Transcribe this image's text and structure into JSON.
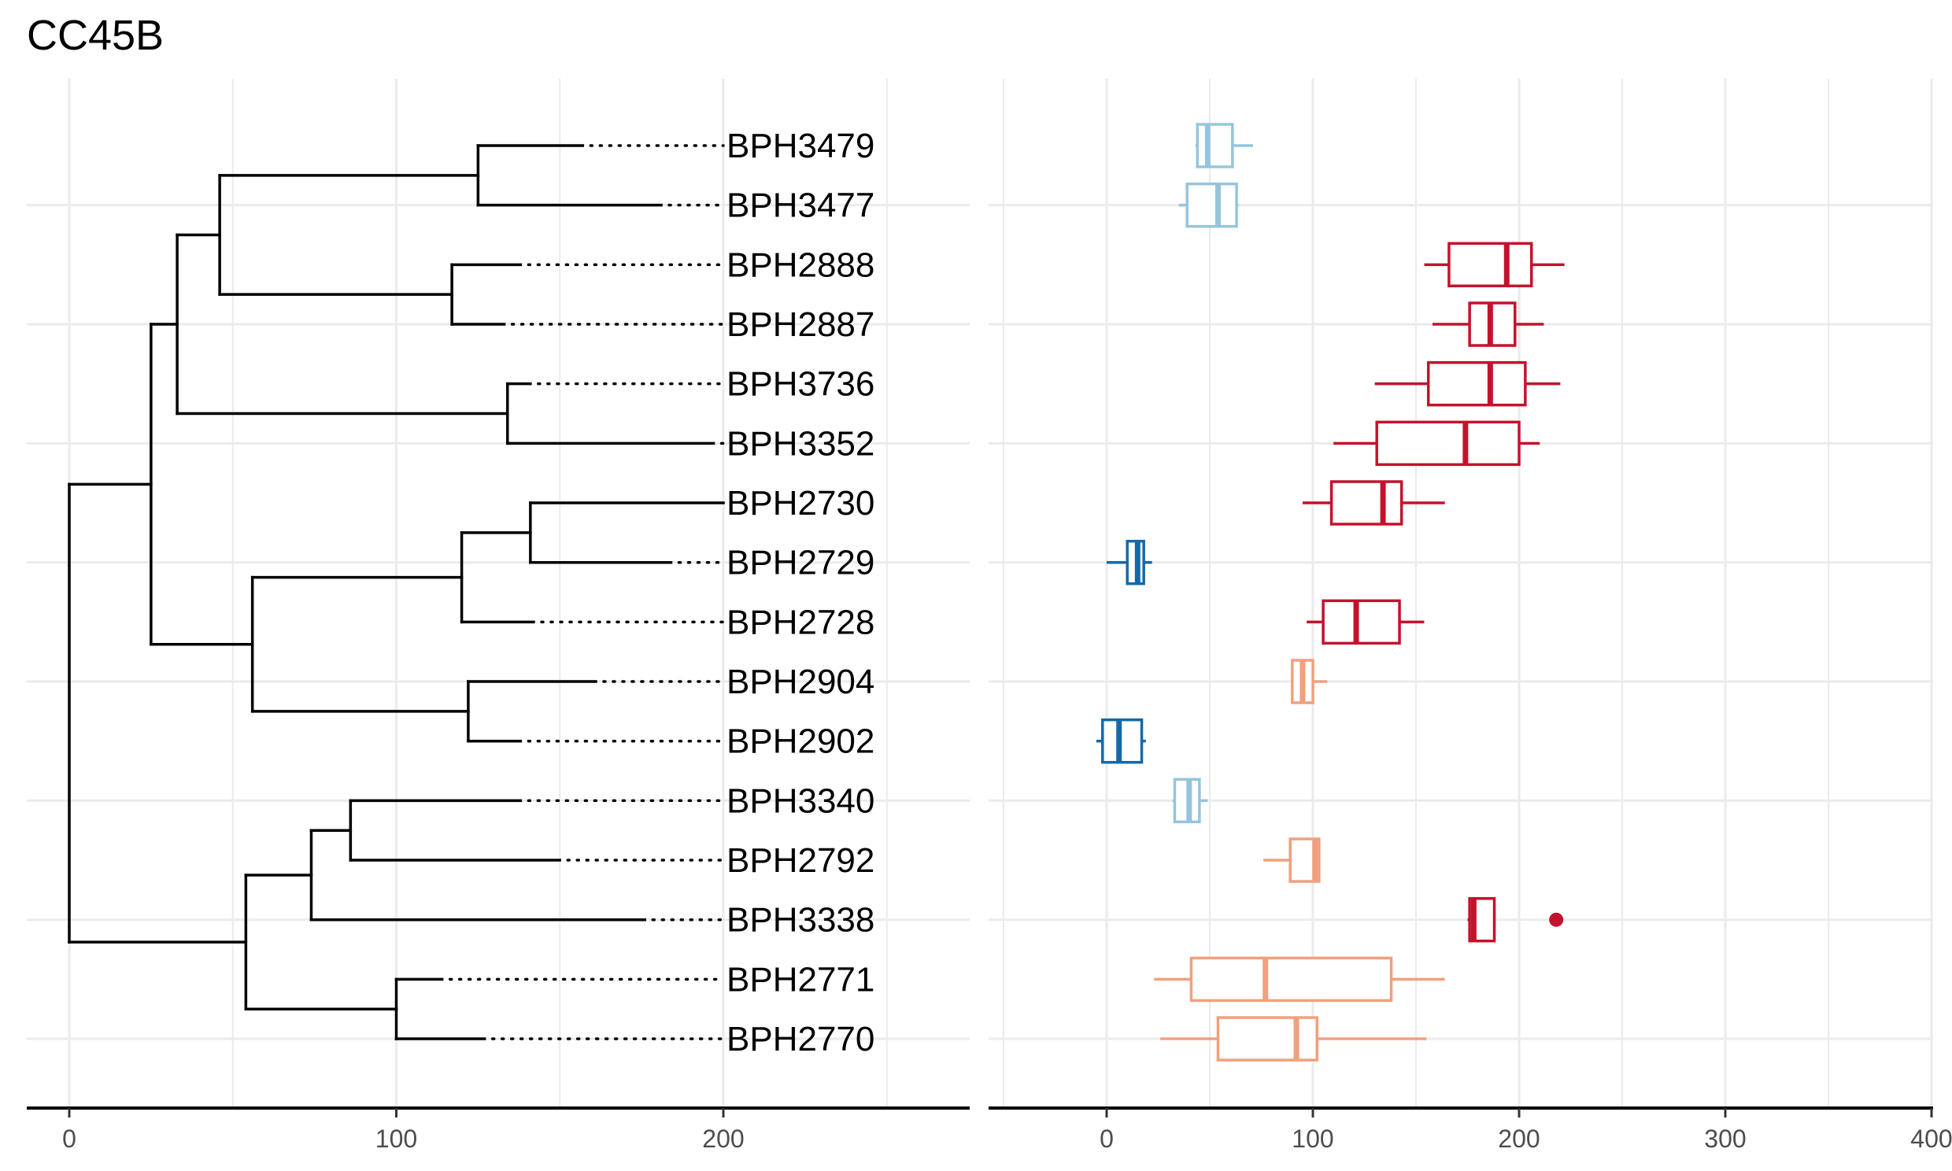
{
  "title": "CC45B",
  "chart_data": [
    {
      "type": "dendrogram",
      "xlim": [
        0,
        265
      ],
      "x_ticks": [
        0,
        100,
        200
      ],
      "grid": true,
      "tips": [
        {
          "label": "BPH3479",
          "branch_end": 157
        },
        {
          "label": "BPH3477",
          "branch_end": 181
        },
        {
          "label": "BPH2888",
          "branch_end": 138
        },
        {
          "label": "BPH2887",
          "branch_end": 133
        },
        {
          "label": "BPH3736",
          "branch_end": 141
        },
        {
          "label": "BPH3352",
          "branch_end": 197
        },
        {
          "label": "BPH2730",
          "branch_end": 200
        },
        {
          "label": "BPH2729",
          "branch_end": 184
        },
        {
          "label": "BPH2728",
          "branch_end": 142
        },
        {
          "label": "BPH2904",
          "branch_end": 161
        },
        {
          "label": "BPH2902",
          "branch_end": 138
        },
        {
          "label": "BPH3340",
          "branch_end": 138
        },
        {
          "label": "BPH2792",
          "branch_end": 150
        },
        {
          "label": "BPH3338",
          "branch_end": 176
        },
        {
          "label": "BPH2771",
          "branch_end": 114
        },
        {
          "label": "BPH2770",
          "branch_end": 127
        }
      ],
      "tree": {
        "h": 0,
        "c": [
          {
            "h": 25,
            "c": [
              {
                "h": 33,
                "c": [
                  {
                    "h": 46,
                    "c": [
                      {
                        "h": 125,
                        "c": [
                          0,
                          1
                        ]
                      },
                      {
                        "h": 117,
                        "c": [
                          2,
                          3
                        ]
                      }
                    ]
                  },
                  {
                    "h": 134,
                    "c": [
                      4,
                      5
                    ]
                  }
                ]
              },
              {
                "h": 56,
                "c": [
                  {
                    "h": 120,
                    "c": [
                      {
                        "h": 141,
                        "c": [
                          6,
                          7
                        ]
                      },
                      8
                    ]
                  },
                  {
                    "h": 122,
                    "c": [
                      9,
                      10
                    ]
                  }
                ]
              }
            ]
          },
          {
            "h": 54,
            "c": [
              {
                "h": 74,
                "c": [
                  {
                    "h": 86,
                    "c": [
                      11,
                      12
                    ]
                  },
                  13
                ]
              },
              {
                "h": 100,
                "c": [
                  14,
                  15
                ]
              }
            ]
          }
        ]
      }
    },
    {
      "type": "boxplot",
      "xlim": [
        -50,
        400
      ],
      "x_ticks": [
        0,
        100,
        200,
        300,
        400
      ],
      "grid": true,
      "colors": {
        "red": "#c4122d",
        "light_red": "#f1a07d",
        "light_blue": "#95c5dd",
        "blue": "#1369a9"
      },
      "boxes": [
        {
          "label": "BPH3479",
          "min": 43,
          "q1": 44,
          "median": 49,
          "q3": 61,
          "max": 71,
          "color": "light_blue"
        },
        {
          "label": "BPH3477",
          "min": 35,
          "q1": 39,
          "median": 54,
          "q3": 63,
          "max": 64,
          "color": "light_blue"
        },
        {
          "label": "BPH2888",
          "min": 154,
          "q1": 166,
          "median": 194,
          "q3": 206,
          "max": 222,
          "color": "red"
        },
        {
          "label": "BPH2887",
          "min": 158,
          "q1": 176,
          "median": 186,
          "q3": 198,
          "max": 212,
          "color": "red"
        },
        {
          "label": "BPH3736",
          "min": 130,
          "q1": 156,
          "median": 186,
          "q3": 203,
          "max": 220,
          "color": "red"
        },
        {
          "label": "BPH3352",
          "min": 110,
          "q1": 131,
          "median": 174,
          "q3": 200,
          "max": 210,
          "color": "red"
        },
        {
          "label": "BPH2730",
          "min": 95,
          "q1": 109,
          "median": 134,
          "q3": 143,
          "max": 164,
          "color": "red"
        },
        {
          "label": "BPH2729",
          "min": 0,
          "q1": 10,
          "median": 15,
          "q3": 18,
          "max": 22,
          "color": "blue"
        },
        {
          "label": "BPH2728",
          "min": 97,
          "q1": 105,
          "median": 121,
          "q3": 142,
          "max": 154,
          "color": "red"
        },
        {
          "label": "BPH2904",
          "min": 90,
          "q1": 90,
          "median": 95,
          "q3": 100,
          "max": 107,
          "color": "light_red"
        },
        {
          "label": "BPH2902",
          "min": -5,
          "q1": -2,
          "median": 6,
          "q3": 17,
          "max": 19,
          "color": "blue"
        },
        {
          "label": "BPH3340",
          "min": 32,
          "q1": 33,
          "median": 40,
          "q3": 45,
          "max": 49,
          "color": "light_blue"
        },
        {
          "label": "BPH2792",
          "min": 76,
          "q1": 89,
          "median": 101,
          "q3": 103,
          "max": 103,
          "color": "light_red"
        },
        {
          "label": "BPH3338",
          "min": 175,
          "q1": 176,
          "median": 178,
          "q3": 188,
          "max": 188,
          "color": "red",
          "outliers": [
            218
          ]
        },
        {
          "label": "BPH2771",
          "min": 23,
          "q1": 41,
          "median": 77,
          "q3": 138,
          "max": 164,
          "color": "light_red"
        },
        {
          "label": "BPH2770",
          "min": 26,
          "q1": 54,
          "median": 92,
          "q3": 102,
          "max": 155,
          "color": "light_red"
        }
      ]
    }
  ]
}
